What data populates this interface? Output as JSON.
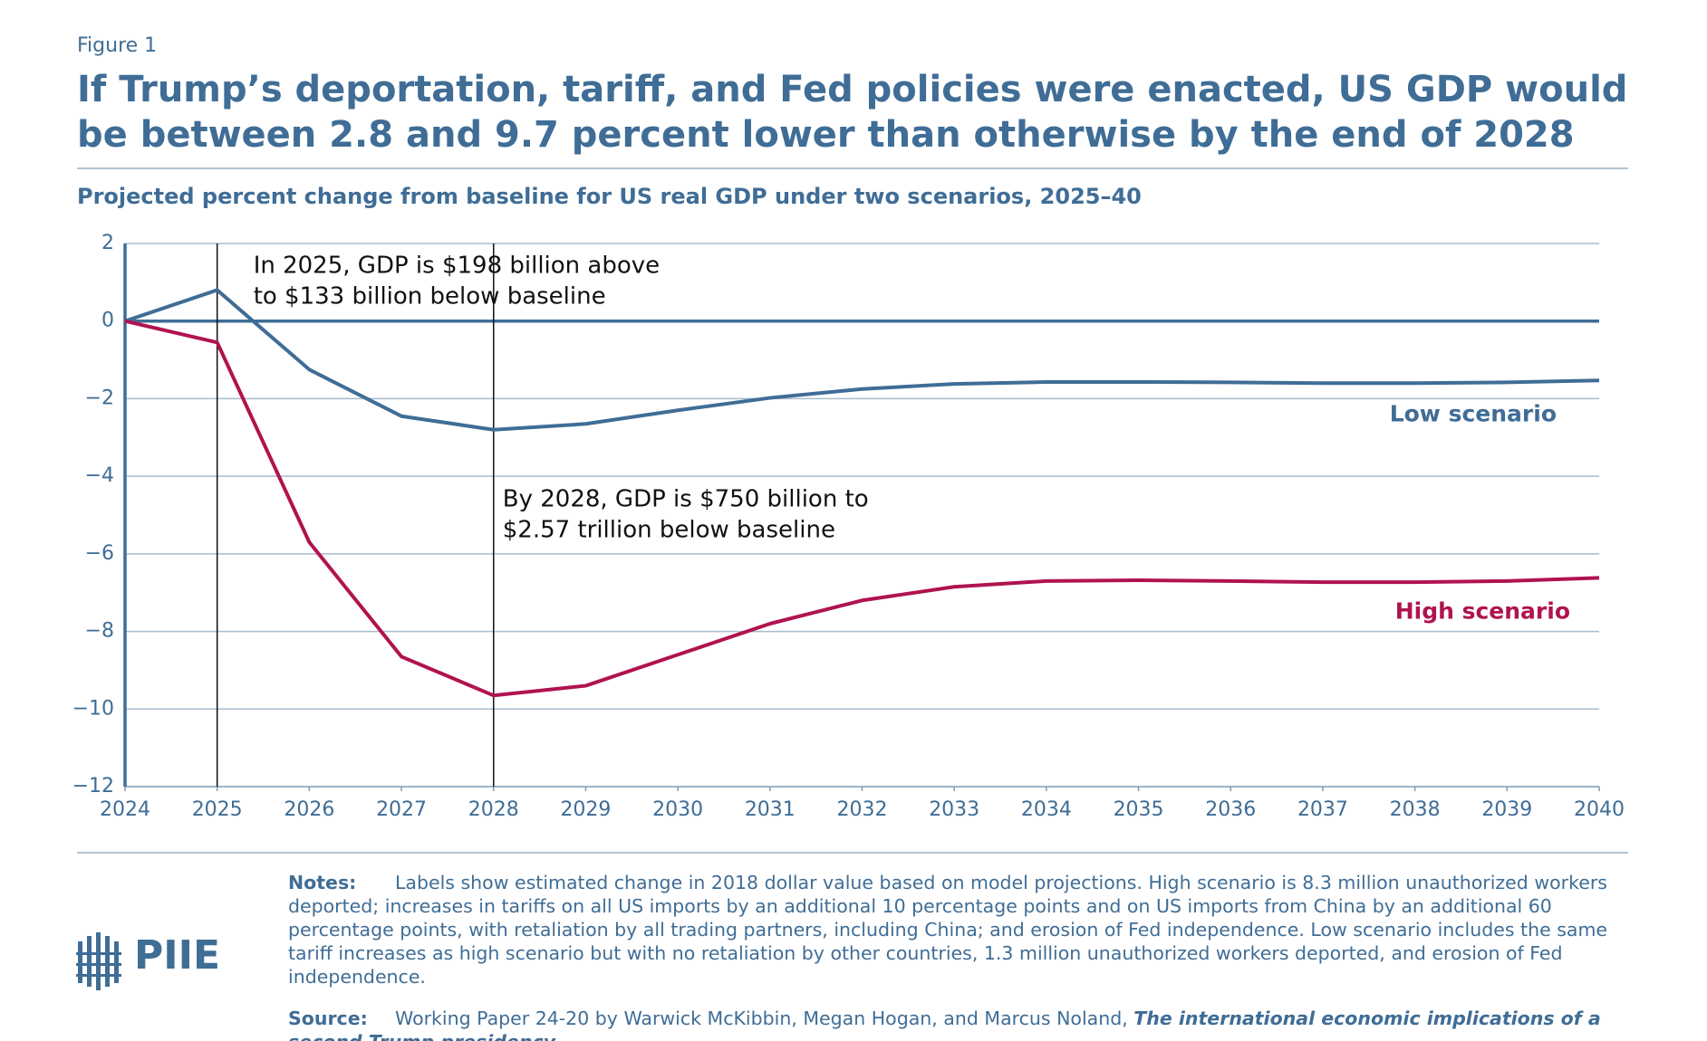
{
  "figure_label": "Figure 1",
  "headline": "If Trump’s deportation, tariff, and Fed policies were enacted, US GDP would be between 2.8 and 9.7 percent lower than otherwise by the end of 2028",
  "chart_data": {
    "type": "line",
    "subtitle": "Projected percent change from baseline for US real GDP under two scenarios, 2025–40",
    "x": [
      2024,
      2025,
      2026,
      2027,
      2028,
      2029,
      2030,
      2031,
      2032,
      2033,
      2034,
      2035,
      2036,
      2037,
      2038,
      2039,
      2040
    ],
    "series": [
      {
        "name": "Low scenario",
        "color": "#3f6d96",
        "values": [
          0,
          0.8,
          -1.25,
          -2.45,
          -2.8,
          -2.65,
          -2.3,
          -1.98,
          -1.75,
          -1.62,
          -1.57,
          -1.57,
          -1.58,
          -1.6,
          -1.6,
          -1.58,
          -1.53
        ]
      },
      {
        "name": "High scenario",
        "color": "#b0134f",
        "values": [
          0,
          -0.55,
          -5.7,
          -8.65,
          -9.65,
          -9.4,
          -8.6,
          -7.8,
          -7.2,
          -6.85,
          -6.7,
          -6.68,
          -6.7,
          -6.73,
          -6.73,
          -6.7,
          -6.62
        ]
      }
    ],
    "xlim": [
      2024,
      2040
    ],
    "xticks": [
      2024,
      2025,
      2026,
      2027,
      2028,
      2029,
      2030,
      2031,
      2032,
      2033,
      2034,
      2035,
      2036,
      2037,
      2038,
      2039,
      2040
    ],
    "ylim": [
      -12,
      2
    ],
    "yticks": [
      {
        "value": -12,
        "label": "−12"
      },
      {
        "value": -10,
        "label": "−10"
      },
      {
        "value": -8,
        "label": "−8"
      },
      {
        "value": -6,
        "label": "−6"
      },
      {
        "value": -4,
        "label": "−4"
      },
      {
        "value": -2,
        "label": "−2"
      },
      0,
      2
    ],
    "grid": true,
    "annotations": [
      {
        "x": 2025,
        "lines": [
          "In 2025, GDP is $198 billion above",
          "to $133 billion below baseline"
        ]
      },
      {
        "x": 2028,
        "lines": [
          "By 2028, GDP is $750 billion to",
          "$2.57 trillion below baseline"
        ]
      }
    ]
  },
  "notes": {
    "label": "Notes:",
    "text": "Labels show estimated change in 2018 dollar value based on model projections. High scenario is 8.3 million unauthorized workers deported; increases in tariffs on all US imports by an additional 10 percentage points and on US imports from China by an additional 60 percentage points, with retaliation by all trading partners, including China; and erosion of Fed independence. Low scenario includes the same tariff increases as high scenario but with no retaliation by other countries, 1.3 million unauthorized workers deported, and erosion of Fed independence."
  },
  "source": {
    "label": "Source:",
    "text": "Working Paper 24-20 by Warwick McKibbin, Megan Hogan, and Marcus Noland,",
    "title": "The international economic implications of a second Trump presidency"
  },
  "logo": "PIIE"
}
